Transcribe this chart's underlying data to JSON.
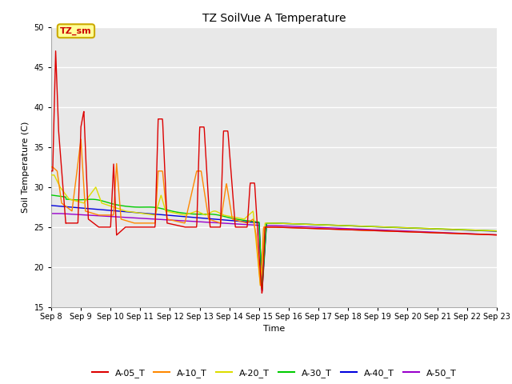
{
  "title": "TZ SoilVue A Temperature",
  "xlabel": "Time",
  "ylabel": "Soil Temperature (C)",
  "ylim": [
    15,
    50
  ],
  "xlim": [
    0,
    15
  ],
  "x_tick_labels": [
    "Sep 8",
    "Sep 9",
    "Sep 10",
    "Sep 11",
    "Sep 12",
    "Sep 13",
    "Sep 14",
    "Sep 15",
    "Sep 16",
    "Sep 17",
    "Sep 18",
    "Sep 19",
    "Sep 20",
    "Sep 21",
    "Sep 22",
    "Sep 23"
  ],
  "yticks": [
    15,
    20,
    25,
    30,
    35,
    40,
    45,
    50
  ],
  "fig_bg_color": "#ffffff",
  "plot_bg_color": "#e8e8e8",
  "grid_color": "#ffffff",
  "annotation_text": "TZ_sm",
  "annotation_color": "#cc0000",
  "annotation_bg": "#ffff99",
  "annotation_border": "#ccaa00",
  "series_colors": {
    "A-05_T": "#dd0000",
    "A-10_T": "#ff8800",
    "A-20_T": "#dddd00",
    "A-30_T": "#00cc00",
    "A-40_T": "#0000dd",
    "A-50_T": "#9900cc"
  },
  "legend_labels": [
    "A-05_T",
    "A-10_T",
    "A-20_T",
    "A-30_T",
    "A-40_T",
    "A-50_T"
  ],
  "lw": 1.0
}
